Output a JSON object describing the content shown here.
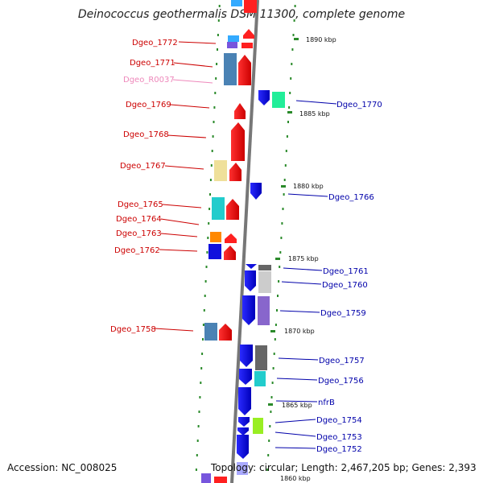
{
  "title": "Deinococcus geothermalis DSM 11300, complete genome",
  "footer": {
    "accession": "Accession: NC_008025",
    "topology": "Topology: circular; Length: 2,467,205 bp; Genes: 2,393"
  },
  "kbp_ticks": [
    "1890 kbp",
    "1885 kbp",
    "1880 kbp",
    "1875 kbp",
    "1870 kbp",
    "1865 kbp",
    "1860 kbp"
  ],
  "left_genes": [
    {
      "name": "Dgeo_1772",
      "color": "#cc0000"
    },
    {
      "name": "Dgeo_1771",
      "color": "#cc0000"
    },
    {
      "name": "Dgeo_R0037",
      "color": "#ee88bb"
    },
    {
      "name": "Dgeo_1769",
      "color": "#cc0000"
    },
    {
      "name": "Dgeo_1768",
      "color": "#cc0000"
    },
    {
      "name": "Dgeo_1767",
      "color": "#cc0000"
    },
    {
      "name": "Dgeo_1765",
      "color": "#cc0000"
    },
    {
      "name": "Dgeo_1764",
      "color": "#cc0000"
    },
    {
      "name": "Dgeo_1763",
      "color": "#cc0000"
    },
    {
      "name": "Dgeo_1762",
      "color": "#cc0000"
    },
    {
      "name": "Dgeo_1758",
      "color": "#cc0000"
    }
  ],
  "right_genes": [
    {
      "name": "Dgeo_1770",
      "color": "#0000aa"
    },
    {
      "name": "Dgeo_1766",
      "color": "#0000aa"
    },
    {
      "name": "Dgeo_1761",
      "color": "#0000aa"
    },
    {
      "name": "Dgeo_1760",
      "color": "#0000aa"
    },
    {
      "name": "Dgeo_1759",
      "color": "#0000aa"
    },
    {
      "name": "Dgeo_1757",
      "color": "#0000aa"
    },
    {
      "name": "Dgeo_1756",
      "color": "#0000aa"
    },
    {
      "name": "nfrB",
      "color": "#0000aa"
    },
    {
      "name": "Dgeo_1754",
      "color": "#0000aa"
    },
    {
      "name": "Dgeo_1753",
      "color": "#0000aa"
    },
    {
      "name": "Dgeo_1752",
      "color": "#0000aa"
    }
  ]
}
